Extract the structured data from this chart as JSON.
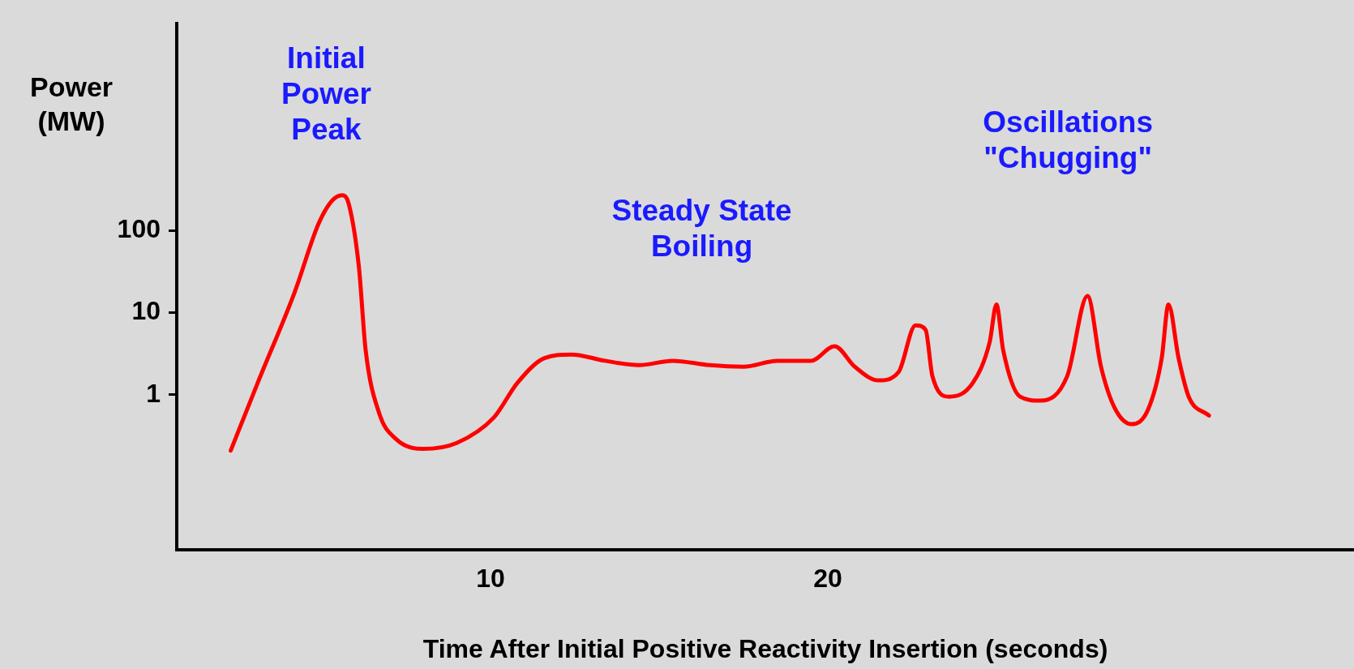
{
  "chart_data": {
    "type": "line",
    "xlabel": "Time After Initial Positive Reactivity Insertion (seconds)",
    "ylabel": "Power\n(MW)",
    "log": "y",
    "xlim": [
      0.7,
      35.6
    ],
    "xticks": [
      10,
      20
    ],
    "ylim": [
      0.013,
      33000
    ],
    "yticks": [
      1,
      10,
      100
    ],
    "grid": false,
    "legend": false,
    "marker": "none",
    "line_style": "solid",
    "x": [
      2.3,
      3.1,
      4.2,
      4.9,
      5.3,
      5.6,
      5.8,
      6.1,
      6.3,
      6.7,
      7.2,
      8.0,
      9.0,
      10.1,
      10.8,
      11.6,
      12.4,
      13.4,
      14.4,
      15.4,
      16.5,
      17.5,
      18.5,
      19.5,
      20.2,
      20.8,
      21.5,
      22.1,
      22.6,
      22.9,
      23.1,
      23.6,
      24.3,
      24.8,
      25.0,
      25.2,
      25.7,
      26.3,
      27.1,
      27.7,
      28.1,
      28.5,
      29.0,
      29.5,
      29.9,
      30.1,
      30.4,
      30.7,
      31.3
    ],
    "series": [
      {
        "color": "#ff0000",
        "values": [
          0.21,
          1.4,
          18,
          120,
          230,
          270,
          210,
          36,
          3.5,
          0.6,
          0.29,
          0.22,
          0.26,
          0.53,
          1.4,
          2.8,
          3.1,
          2.6,
          2.3,
          2.6,
          2.3,
          2.2,
          2.6,
          2.6,
          3.9,
          2.2,
          1.5,
          1.9,
          7,
          6.2,
          1.7,
          0.95,
          1.4,
          4.4,
          12.6,
          3.5,
          0.95,
          0.85,
          1.7,
          16,
          2.2,
          0.7,
          0.44,
          0.67,
          2.8,
          12.6,
          2.8,
          0.95,
          0.56
        ]
      }
    ],
    "annotations": [
      "Initial\nPower\nPeak",
      "Steady State\nBoiling",
      "Oscillations\n\"Chugging\""
    ]
  }
}
